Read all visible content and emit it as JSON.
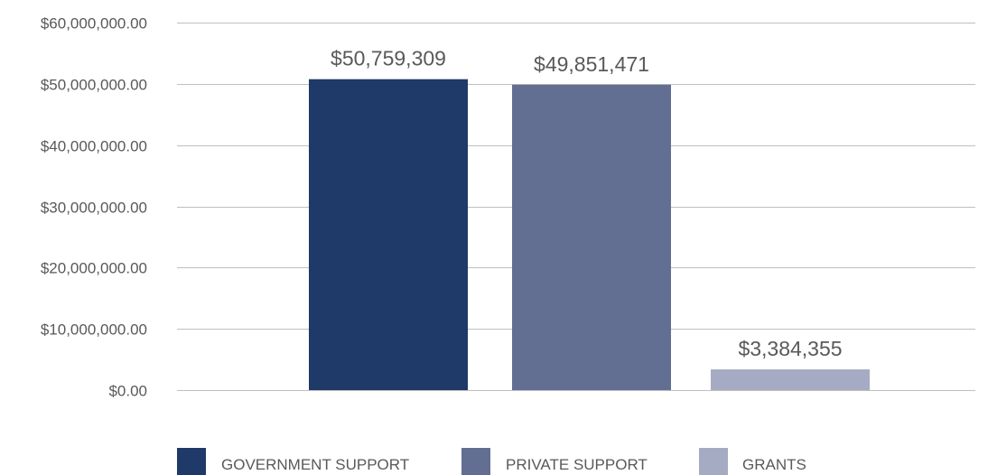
{
  "chart_data": {
    "type": "bar",
    "categories": [
      "GOVERNMENT SUPPORT",
      "PRIVATE SUPPORT",
      "GRANTS"
    ],
    "values": [
      50759309,
      49851471,
      3384355
    ],
    "data_labels": [
      "$50,759,309",
      "$49,851,471",
      "$3,384,355"
    ],
    "title": "",
    "xlabel": "",
    "ylabel": "",
    "ylim": [
      0,
      60000000
    ],
    "y_ticks": [
      0,
      10000000,
      20000000,
      30000000,
      40000000,
      50000000,
      60000000
    ],
    "y_tick_labels": [
      "$0.00",
      "$10,000,000.00",
      "$20,000,000.00",
      "$30,000,000.00",
      "$40,000,000.00",
      "$50,000,000.00",
      "$60,000,000.00"
    ],
    "colors": [
      "#1f3a68",
      "#636e93",
      "#a6abc4"
    ],
    "grid": true,
    "legend_position": "bottom"
  }
}
